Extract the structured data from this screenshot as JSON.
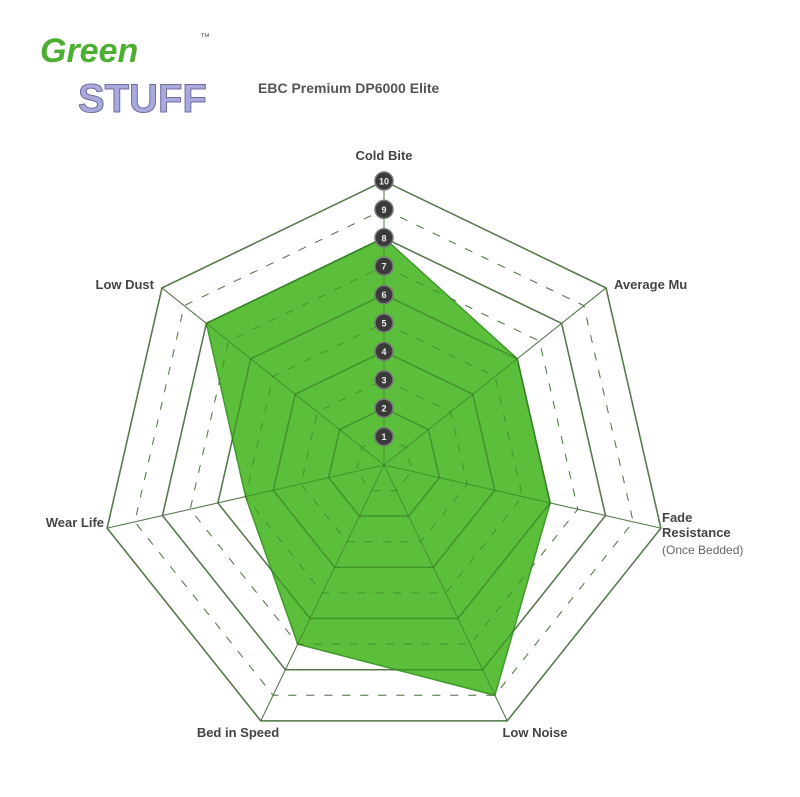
{
  "logo": {
    "line1": "Green",
    "line2": "STUFF",
    "tm": "™",
    "colors": {
      "green": "#4caf32",
      "stuff": "#a9a9dc"
    }
  },
  "chart_data": {
    "type": "radar",
    "title": "EBC Premium DP6000 Elite",
    "axes": [
      {
        "label": "Cold Bite",
        "sublabel": ""
      },
      {
        "label": "Average Mu",
        "sublabel": ""
      },
      {
        "label": "Fade Resistance",
        "sublabel": "(Once Bedded)"
      },
      {
        "label": "Low Noise",
        "sublabel": ""
      },
      {
        "label": "Bed in Speed",
        "sublabel": ""
      },
      {
        "label": "Wear Life",
        "sublabel": ""
      },
      {
        "label": "Low Dust",
        "sublabel": ""
      }
    ],
    "scale_ticks": [
      "1",
      "2",
      "3",
      "4",
      "5",
      "6",
      "7",
      "8",
      "9",
      "10"
    ],
    "range": [
      0,
      10
    ],
    "values": [
      8,
      6,
      6,
      9,
      7,
      5,
      8
    ],
    "fill_color": "#5cbf3c",
    "grid": true
  }
}
